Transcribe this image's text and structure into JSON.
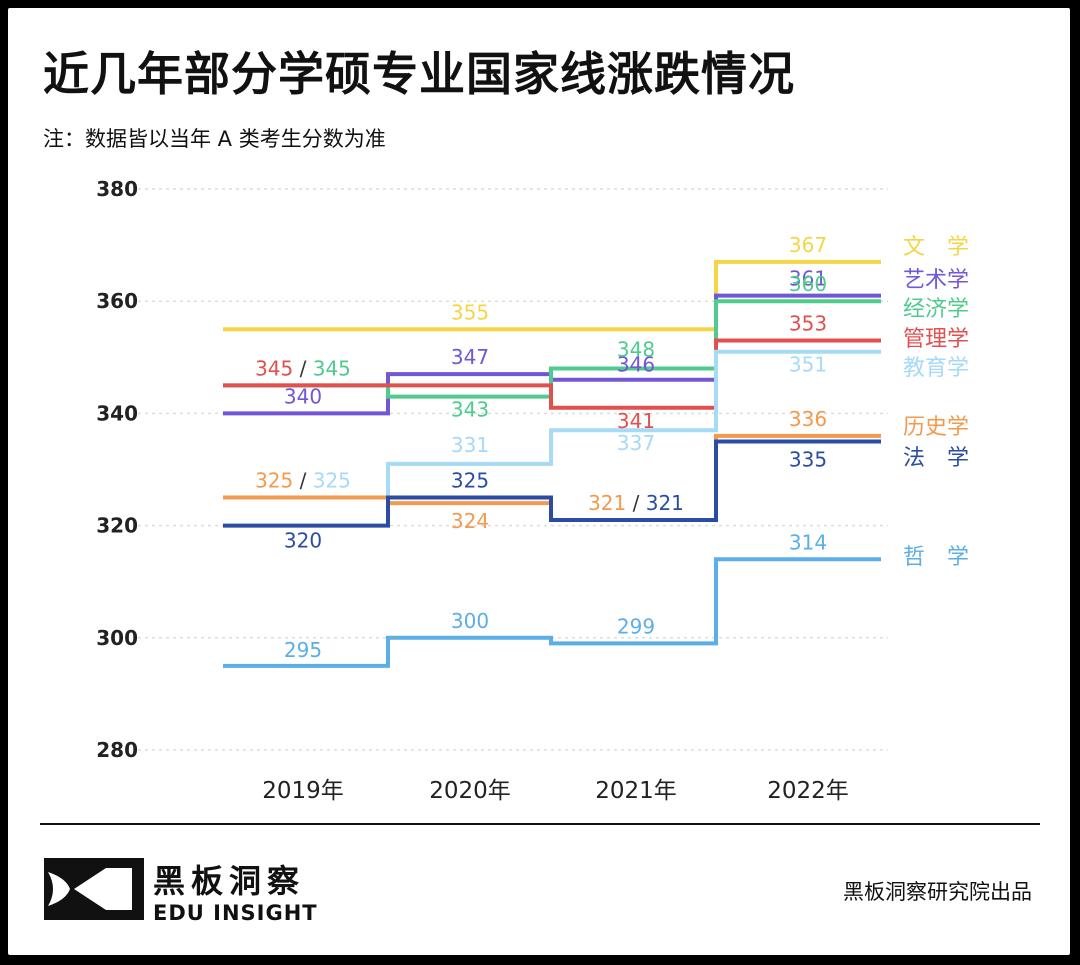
{
  "title": "近几年部分学硕专业国家线涨跌情况",
  "subtitle": "注：数据皆以当年 A 类考生分数为准",
  "brand": {
    "name_cn": "黑板洞察",
    "name_en": "EDU INSIGHT",
    "credit": "黑板洞察研究院出品"
  },
  "chart_data": {
    "type": "line",
    "step": true,
    "categories": [
      "2019年",
      "2020年",
      "2021年",
      "2022年"
    ],
    "ylim": [
      280,
      380
    ],
    "yticks": [
      "280",
      "300",
      "320",
      "340",
      "360",
      "380"
    ],
    "grid": true,
    "series": [
      {
        "name": "文　学",
        "color": "#F5D547",
        "values": [
          355,
          355,
          355,
          367
        ],
        "labels": [
          "",
          "355",
          "",
          "367"
        ]
      },
      {
        "name": "艺术学",
        "color": "#7256D6",
        "values": [
          340,
          347,
          346,
          361
        ],
        "labels": [
          "340",
          "347",
          "346",
          "361"
        ]
      },
      {
        "name": "经济学",
        "color": "#4FCB8E",
        "values": [
          345,
          343,
          348,
          360
        ],
        "labels": [
          "",
          "343",
          "348",
          "360"
        ]
      },
      {
        "name": "管理学",
        "color": "#E1504F",
        "values": [
          345,
          345,
          341,
          353
        ],
        "labels": [
          "",
          "",
          "341",
          "353"
        ]
      },
      {
        "name": "教育学",
        "color": "#A6DAF5",
        "values": [
          325,
          331,
          337,
          351
        ],
        "labels": [
          "",
          "331",
          "337",
          "351"
        ]
      },
      {
        "name": "历史学",
        "color": "#F39A4E",
        "values": [
          325,
          324,
          321,
          336
        ],
        "labels": [
          "",
          "324",
          "",
          "336"
        ]
      },
      {
        "name": "法　学",
        "color": "#2A4DA3",
        "values": [
          320,
          325,
          321,
          335
        ],
        "labels": [
          "320",
          "325",
          "",
          "335"
        ]
      },
      {
        "name": "哲　学",
        "color": "#5BAEE6",
        "values": [
          295,
          300,
          299,
          314
        ],
        "labels": [
          "295",
          "300",
          "299",
          "314"
        ]
      }
    ],
    "pair_labels": [
      {
        "category": "2019年",
        "y": 345,
        "items": [
          {
            "text": "345",
            "color": "#E1504F"
          },
          {
            "text": "/",
            "color": "#333333"
          },
          {
            "text": "345",
            "color": "#4FCB8E"
          }
        ]
      },
      {
        "category": "2019年",
        "y": 325,
        "items": [
          {
            "text": "325",
            "color": "#F39A4E"
          },
          {
            "text": "/",
            "color": "#333333"
          },
          {
            "text": "325",
            "color": "#A6DAF5"
          }
        ]
      },
      {
        "category": "2021年",
        "y": 321,
        "items": [
          {
            "text": "321",
            "color": "#F39A4E"
          },
          {
            "text": "/",
            "color": "#333333"
          },
          {
            "text": "321",
            "color": "#2A4DA3"
          }
        ]
      }
    ]
  }
}
